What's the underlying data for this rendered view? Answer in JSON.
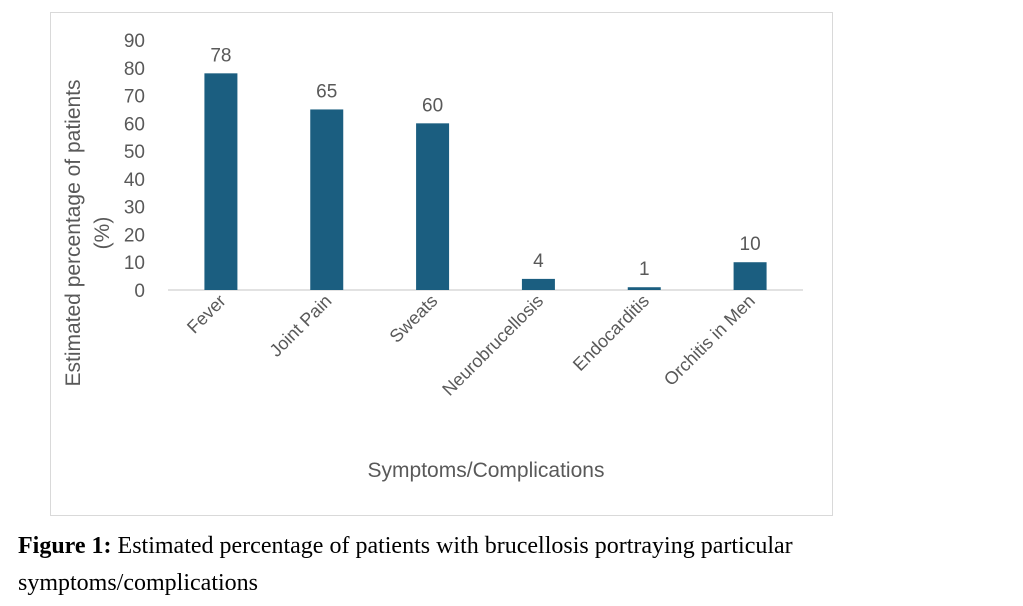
{
  "chart_data": {
    "type": "bar",
    "categories": [
      "Fever",
      "Joint Pain",
      "Sweats",
      "Neurobrucellosis",
      "Endocarditis",
      "Orchitis in Men"
    ],
    "values": [
      78,
      65,
      60,
      4,
      1,
      10
    ],
    "xlabel": "Symptoms/Complications",
    "ylabel": [
      "Estimated percentage of patients",
      "(%)"
    ],
    "ylim": [
      0,
      90
    ],
    "yticks": [
      0,
      10,
      20,
      30,
      40,
      50,
      60,
      70,
      80,
      90
    ],
    "grid": false,
    "data_labels": true,
    "bar_color": "#1b5e80"
  },
  "caption": {
    "label": "Figure 1:",
    "text": " Estimated percentage of patients with brucellosis portraying particular symptoms/complications"
  }
}
